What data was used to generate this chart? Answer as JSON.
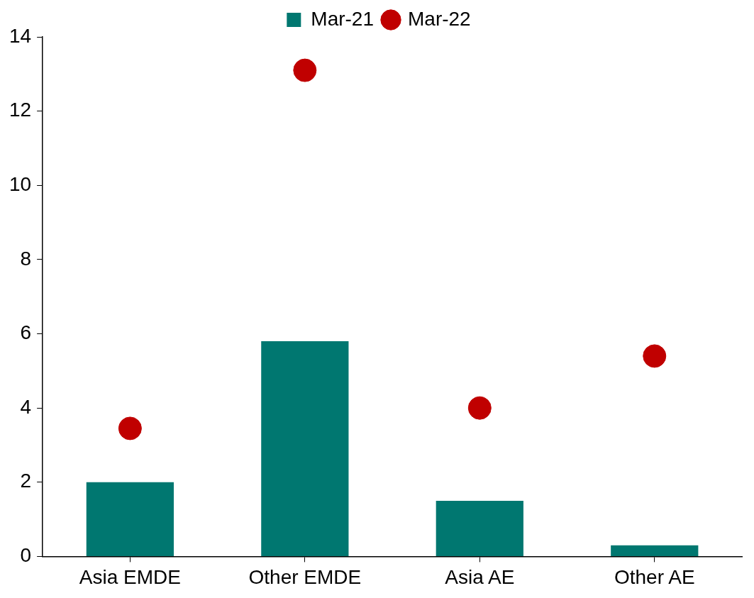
{
  "chart_data": {
    "type": "bar",
    "categories": [
      "Asia EMDE",
      "Other EMDE",
      "Asia AE",
      "Other AE"
    ],
    "series": [
      {
        "name": "Mar-21",
        "color": "#007770",
        "values": [
          2.0,
          5.8,
          1.5,
          0.3
        ]
      },
      {
        "name": "Mar-22",
        "type": "scatter",
        "color": "#c00000",
        "x": [
          "Asia EMDE",
          "Other EMDE",
          "Asia AE",
          "Other AE"
        ],
        "values": [
          3.45,
          13.1,
          4.0,
          5.4
        ]
      }
    ],
    "ylim": [
      0,
      14
    ],
    "yticks": [
      0,
      2,
      4,
      6,
      8,
      10,
      12,
      14
    ],
    "grid": false,
    "legend": "top",
    "marker": "circle"
  }
}
